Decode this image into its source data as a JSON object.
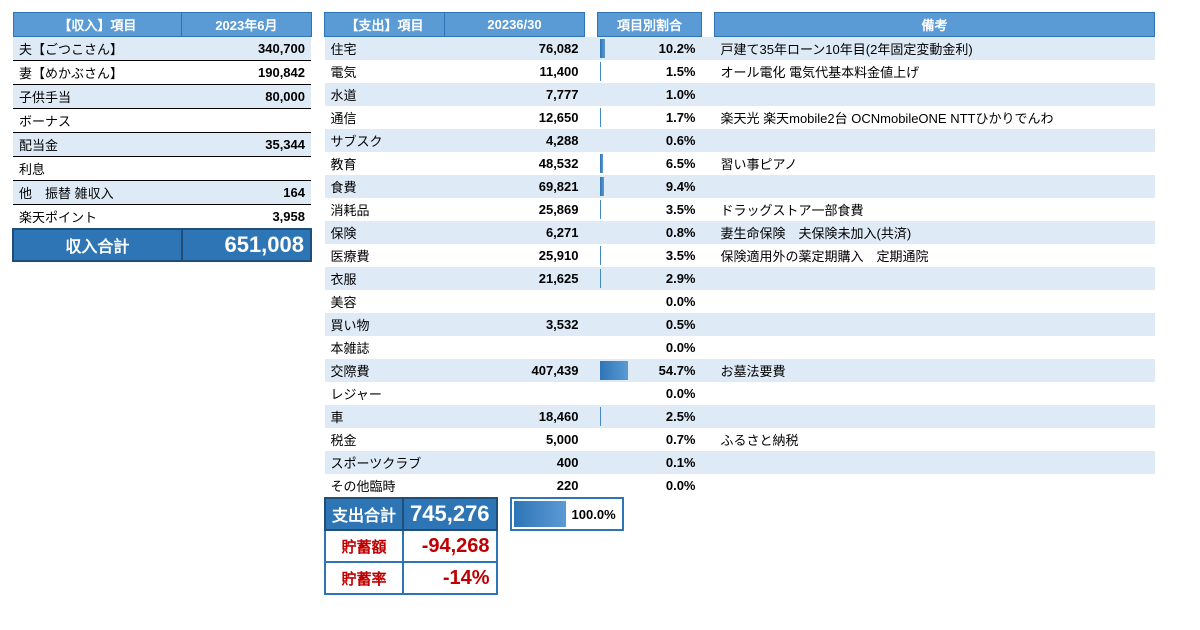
{
  "colors": {
    "header_bg": "#5b9bd5",
    "header_border": "#2e75b6",
    "alt_row": "#deeaf6",
    "total_bg": "#2e75b6",
    "total_border": "#1f4e79",
    "neg_text": "#c00000",
    "bar_from": "#2e75b6",
    "bar_to": "#5b9bd5"
  },
  "income": {
    "headers": {
      "item": "【収入】項目",
      "value": "2023年6月"
    },
    "rows": [
      {
        "item": "夫【ごつこさん】",
        "value": "340,700"
      },
      {
        "item": "妻【めかぶさん】",
        "value": "190,842"
      },
      {
        "item": "子供手当",
        "value": "80,000"
      },
      {
        "item": "ボーナス",
        "value": ""
      },
      {
        "item": "配当金",
        "value": "35,344"
      },
      {
        "item": "利息",
        "value": ""
      },
      {
        "item": "他　振替 雑収入",
        "value": "164"
      },
      {
        "item": "楽天ポイント",
        "value": "3,958"
      }
    ],
    "total": {
      "label": "収入合計",
      "value": "651,008"
    }
  },
  "expense": {
    "headers": {
      "item": "【支出】項目",
      "value": "20236/30",
      "pct": "項目別割合",
      "note": "備考"
    },
    "rows": [
      {
        "item": "住宅",
        "value": "76,082",
        "pct": "10.2%",
        "pct_num": 10.2,
        "note": "戸建て35年ローン10年目(2年固定変動金利)"
      },
      {
        "item": "電気",
        "value": "11,400",
        "pct": "1.5%",
        "pct_num": 1.5,
        "note": "オール電化 電気代基本料金値上げ"
      },
      {
        "item": "水道",
        "value": "7,777",
        "pct": "1.0%",
        "pct_num": 1.0,
        "note": ""
      },
      {
        "item": "通信",
        "value": "12,650",
        "pct": "1.7%",
        "pct_num": 1.7,
        "note": "楽天光 楽天mobile2台 OCNmobileONE NTTひかりでんわ"
      },
      {
        "item": "サブスク",
        "value": "4,288",
        "pct": "0.6%",
        "pct_num": 0.6,
        "note": ""
      },
      {
        "item": "教育",
        "value": "48,532",
        "pct": "6.5%",
        "pct_num": 6.5,
        "note": "習い事ピアノ"
      },
      {
        "item": "食費",
        "value": "69,821",
        "pct": "9.4%",
        "pct_num": 9.4,
        "note": ""
      },
      {
        "item": "消耗品",
        "value": "25,869",
        "pct": "3.5%",
        "pct_num": 3.5,
        "note": "ドラッグストア一部食費"
      },
      {
        "item": "保険",
        "value": "6,271",
        "pct": "0.8%",
        "pct_num": 0.8,
        "note": "妻生命保険　夫保険未加入(共済)"
      },
      {
        "item": "医療費",
        "value": "25,910",
        "pct": "3.5%",
        "pct_num": 3.5,
        "note": "保険適用外の薬定期購入　定期通院"
      },
      {
        "item": "衣服",
        "value": "21,625",
        "pct": "2.9%",
        "pct_num": 2.9,
        "note": ""
      },
      {
        "item": "美容",
        "value": "",
        "pct": "0.0%",
        "pct_num": 0.0,
        "note": ""
      },
      {
        "item": "買い物",
        "value": "3,532",
        "pct": "0.5%",
        "pct_num": 0.5,
        "note": ""
      },
      {
        "item": "本雑誌",
        "value": "",
        "pct": "0.0%",
        "pct_num": 0.0,
        "note": ""
      },
      {
        "item": "交際費",
        "value": "407,439",
        "pct": "54.7%",
        "pct_num": 54.7,
        "note": "お墓法要費"
      },
      {
        "item": "レジャー",
        "value": "",
        "pct": "0.0%",
        "pct_num": 0.0,
        "note": ""
      },
      {
        "item": "車",
        "value": "18,460",
        "pct": "2.5%",
        "pct_num": 2.5,
        "note": ""
      },
      {
        "item": "税金",
        "value": "5,000",
        "pct": "0.7%",
        "pct_num": 0.7,
        "note": "ふるさと納税"
      },
      {
        "item": "スポーツクラブ",
        "value": "400",
        "pct": "0.1%",
        "pct_num": 0.1,
        "note": ""
      },
      {
        "item": "その他臨時",
        "value": "220",
        "pct": "0.0%",
        "pct_num": 0.0,
        "note": ""
      }
    ],
    "total": {
      "label": "支出合計",
      "value": "745,276",
      "pct": "100.0%",
      "pct_num": 100.0
    },
    "savings": {
      "label": "貯蓄額",
      "value": "-94,268"
    },
    "rate": {
      "label": "貯蓄率",
      "value": "-14%"
    }
  }
}
